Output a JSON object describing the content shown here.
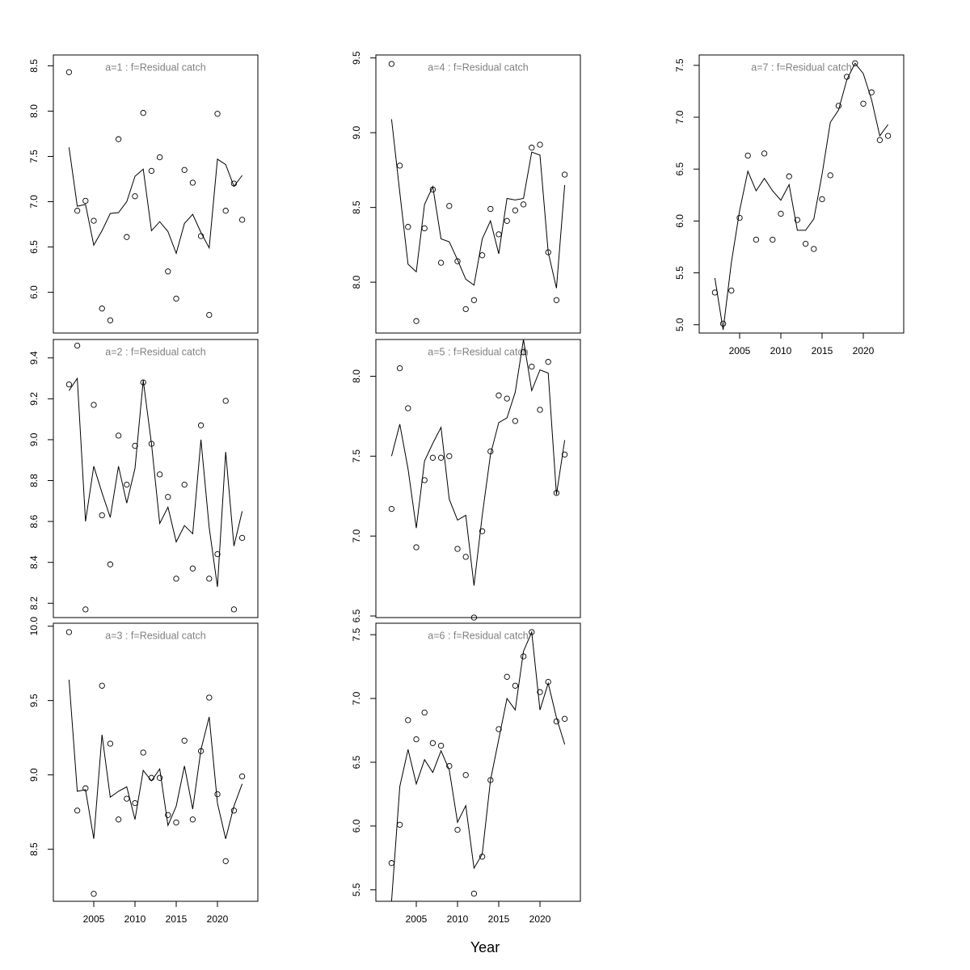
{
  "xlabel": "Year",
  "chart_data": [
    {
      "type": "line",
      "title": "a=1  :  f=Residual catch",
      "x": [
        2002,
        2003,
        2004,
        2005,
        2006,
        2007,
        2008,
        2009,
        2010,
        2011,
        2012,
        2013,
        2014,
        2015,
        2016,
        2017,
        2018,
        2019,
        2020,
        2021,
        2022,
        2023
      ],
      "xlim": [
        2000.1,
        2024.9
      ],
      "ylim": [
        5.55,
        8.62
      ],
      "yticks": [
        6.0,
        6.5,
        7.0,
        7.5,
        8.0,
        8.5
      ],
      "xticks_shown": false,
      "series": [
        {
          "kind": "points",
          "values": [
            8.43,
            6.9,
            7.01,
            6.79,
            5.82,
            5.69,
            7.69,
            6.61,
            7.06,
            7.98,
            7.34,
            7.49,
            6.23,
            5.93,
            7.35,
            7.21,
            6.62,
            5.75,
            7.97,
            6.9,
            7.2,
            6.8
          ]
        },
        {
          "kind": "line",
          "values": [
            7.6,
            6.95,
            6.97,
            6.52,
            6.68,
            6.87,
            6.88,
            7.0,
            7.28,
            7.36,
            6.68,
            6.78,
            6.67,
            6.43,
            6.76,
            6.86,
            6.66,
            6.49,
            7.47,
            7.41,
            7.17,
            7.29
          ]
        }
      ]
    },
    {
      "type": "line",
      "title": "a=2  :  f=Residual catch",
      "x": [
        2002,
        2003,
        2004,
        2005,
        2006,
        2007,
        2008,
        2009,
        2010,
        2011,
        2012,
        2013,
        2014,
        2015,
        2016,
        2017,
        2018,
        2019,
        2020,
        2021,
        2022,
        2023
      ],
      "xlim": [
        2000.1,
        2024.9
      ],
      "ylim": [
        8.13,
        9.49
      ],
      "yticks": [
        8.2,
        8.4,
        8.6,
        8.8,
        9.0,
        9.2,
        9.4
      ],
      "xticks_shown": false,
      "series": [
        {
          "kind": "points",
          "values": [
            9.27,
            9.46,
            8.17,
            9.17,
            8.63,
            8.39,
            9.02,
            8.78,
            8.97,
            9.28,
            8.98,
            8.83,
            8.72,
            8.32,
            8.78,
            8.37,
            9.07,
            8.32,
            8.44,
            9.19,
            8.17,
            8.52
          ]
        },
        {
          "kind": "line",
          "values": [
            9.24,
            9.3,
            8.6,
            8.87,
            8.74,
            8.62,
            8.87,
            8.69,
            8.86,
            9.29,
            8.98,
            8.59,
            8.67,
            8.5,
            8.58,
            8.54,
            9.0,
            8.57,
            8.28,
            8.94,
            8.48,
            8.65
          ]
        }
      ]
    },
    {
      "type": "line",
      "title": "a=3  :  f=Residual catch",
      "x": [
        2002,
        2003,
        2004,
        2005,
        2006,
        2007,
        2008,
        2009,
        2010,
        2011,
        2012,
        2013,
        2014,
        2015,
        2016,
        2017,
        2018,
        2019,
        2020,
        2021,
        2022,
        2023
      ],
      "xlim": [
        2000.1,
        2024.9
      ],
      "ylim": [
        8.15,
        10.02
      ],
      "yticks": [
        8.5,
        9.0,
        9.5,
        10.0
      ],
      "xticks_shown": true,
      "xticks": [
        2005,
        2010,
        2015,
        2020
      ],
      "series": [
        {
          "kind": "points",
          "values": [
            9.96,
            8.76,
            8.91,
            8.2,
            9.6,
            9.21,
            8.7,
            8.84,
            8.81,
            9.15,
            8.98,
            8.98,
            8.73,
            8.68,
            9.23,
            8.7,
            9.16,
            9.52,
            8.87,
            8.42,
            8.76,
            8.99
          ]
        },
        {
          "kind": "line",
          "values": [
            9.64,
            8.89,
            8.9,
            8.57,
            9.27,
            8.85,
            8.89,
            8.92,
            8.7,
            9.03,
            8.96,
            9.04,
            8.66,
            8.79,
            9.06,
            8.77,
            9.17,
            9.39,
            8.81,
            8.57,
            8.79,
            8.94
          ]
        }
      ]
    },
    {
      "type": "line",
      "title": "a=4  :  f=Residual catch",
      "x": [
        2002,
        2003,
        2004,
        2005,
        2006,
        2007,
        2008,
        2009,
        2010,
        2011,
        2012,
        2013,
        2014,
        2015,
        2016,
        2017,
        2018,
        2019,
        2020,
        2021,
        2022,
        2023
      ],
      "xlim": [
        2000.1,
        2024.9
      ],
      "ylim": [
        7.66,
        9.52
      ],
      "yticks": [
        8.0,
        8.5,
        9.0,
        9.5
      ],
      "xticks_shown": false,
      "series": [
        {
          "kind": "points",
          "values": [
            9.46,
            8.78,
            8.37,
            7.74,
            8.36,
            8.62,
            8.13,
            8.51,
            8.14,
            7.82,
            7.88,
            8.18,
            8.49,
            8.32,
            8.41,
            8.48,
            8.52,
            8.9,
            8.92,
            8.2,
            7.88,
            8.72
          ]
        },
        {
          "kind": "line",
          "values": [
            9.09,
            8.6,
            8.12,
            8.07,
            8.52,
            8.64,
            8.29,
            8.27,
            8.15,
            8.02,
            7.98,
            8.29,
            8.41,
            8.19,
            8.56,
            8.55,
            8.56,
            8.87,
            8.85,
            8.2,
            7.96,
            8.65
          ]
        }
      ]
    },
    {
      "type": "line",
      "title": "a=5  :  f=Residual catch",
      "x": [
        2002,
        2003,
        2004,
        2005,
        2006,
        2007,
        2008,
        2009,
        2010,
        2011,
        2012,
        2013,
        2014,
        2015,
        2016,
        2017,
        2018,
        2019,
        2020,
        2021,
        2022,
        2023
      ],
      "xlim": [
        2000.1,
        2024.9
      ],
      "ylim": [
        6.49,
        8.23
      ],
      "yticks": [
        6.5,
        7.0,
        7.5,
        8.0
      ],
      "xticks_shown": false,
      "series": [
        {
          "kind": "points",
          "values": [
            7.17,
            8.05,
            7.8,
            6.93,
            7.35,
            7.49,
            7.49,
            7.5,
            6.92,
            6.87,
            6.49,
            7.03,
            7.53,
            7.88,
            7.86,
            7.72,
            8.15,
            8.06,
            7.79,
            8.09,
            7.27,
            7.51
          ]
        },
        {
          "kind": "line",
          "values": [
            7.5,
            7.7,
            7.42,
            7.05,
            7.47,
            7.58,
            7.68,
            7.23,
            7.1,
            7.13,
            6.69,
            7.13,
            7.51,
            7.71,
            7.74,
            7.9,
            8.23,
            7.91,
            8.04,
            8.02,
            7.26,
            7.6
          ]
        }
      ]
    },
    {
      "type": "line",
      "title": "a=6  :  f=Residual catch",
      "x": [
        2002,
        2003,
        2004,
        2005,
        2006,
        2007,
        2008,
        2009,
        2010,
        2011,
        2012,
        2013,
        2014,
        2015,
        2016,
        2017,
        2018,
        2019,
        2020,
        2021,
        2022,
        2023
      ],
      "xlim": [
        2000.1,
        2024.9
      ],
      "ylim": [
        5.41,
        7.59
      ],
      "yticks": [
        5.5,
        6.0,
        6.5,
        7.0,
        7.5
      ],
      "xticks_shown": true,
      "xticks": [
        2005,
        2010,
        2015,
        2020
      ],
      "series": [
        {
          "kind": "points",
          "values": [
            5.71,
            6.01,
            6.83,
            6.68,
            6.89,
            6.65,
            6.63,
            6.47,
            5.97,
            6.4,
            5.47,
            5.76,
            6.36,
            6.76,
            7.17,
            7.1,
            7.33,
            7.52,
            7.05,
            7.13,
            6.82,
            6.84
          ]
        },
        {
          "kind": "line",
          "values": [
            5.41,
            6.31,
            6.6,
            6.33,
            6.52,
            6.42,
            6.59,
            6.44,
            6.03,
            6.16,
            5.67,
            5.78,
            6.36,
            6.68,
            7.0,
            6.91,
            7.37,
            7.52,
            6.91,
            7.12,
            6.85,
            6.64
          ]
        }
      ]
    },
    {
      "type": "line",
      "title": "a=7  :  f=Residual catch",
      "x": [
        2002,
        2003,
        2004,
        2005,
        2006,
        2007,
        2008,
        2009,
        2010,
        2011,
        2012,
        2013,
        2014,
        2015,
        2016,
        2017,
        2018,
        2019,
        2020,
        2021,
        2022,
        2023
      ],
      "xlim": [
        2000.1,
        2024.9
      ],
      "ylim": [
        4.92,
        7.6
      ],
      "yticks": [
        5.0,
        5.5,
        6.0,
        6.5,
        7.0,
        7.5
      ],
      "xticks_shown": true,
      "xticks": [
        2005,
        2010,
        2015,
        2020
      ],
      "series": [
        {
          "kind": "points",
          "values": [
            5.31,
            5.01,
            5.33,
            6.03,
            6.63,
            5.82,
            6.65,
            5.82,
            6.07,
            6.43,
            6.01,
            5.78,
            5.73,
            6.21,
            6.44,
            7.11,
            7.39,
            7.52,
            7.13,
            7.24,
            6.78,
            6.82
          ]
        },
        {
          "kind": "line",
          "values": [
            5.45,
            4.95,
            5.6,
            6.1,
            6.48,
            6.29,
            6.41,
            6.29,
            6.2,
            6.35,
            5.91,
            5.91,
            6.02,
            6.45,
            6.95,
            7.07,
            7.36,
            7.52,
            7.42,
            7.17,
            6.82,
            6.93
          ]
        }
      ]
    }
  ]
}
